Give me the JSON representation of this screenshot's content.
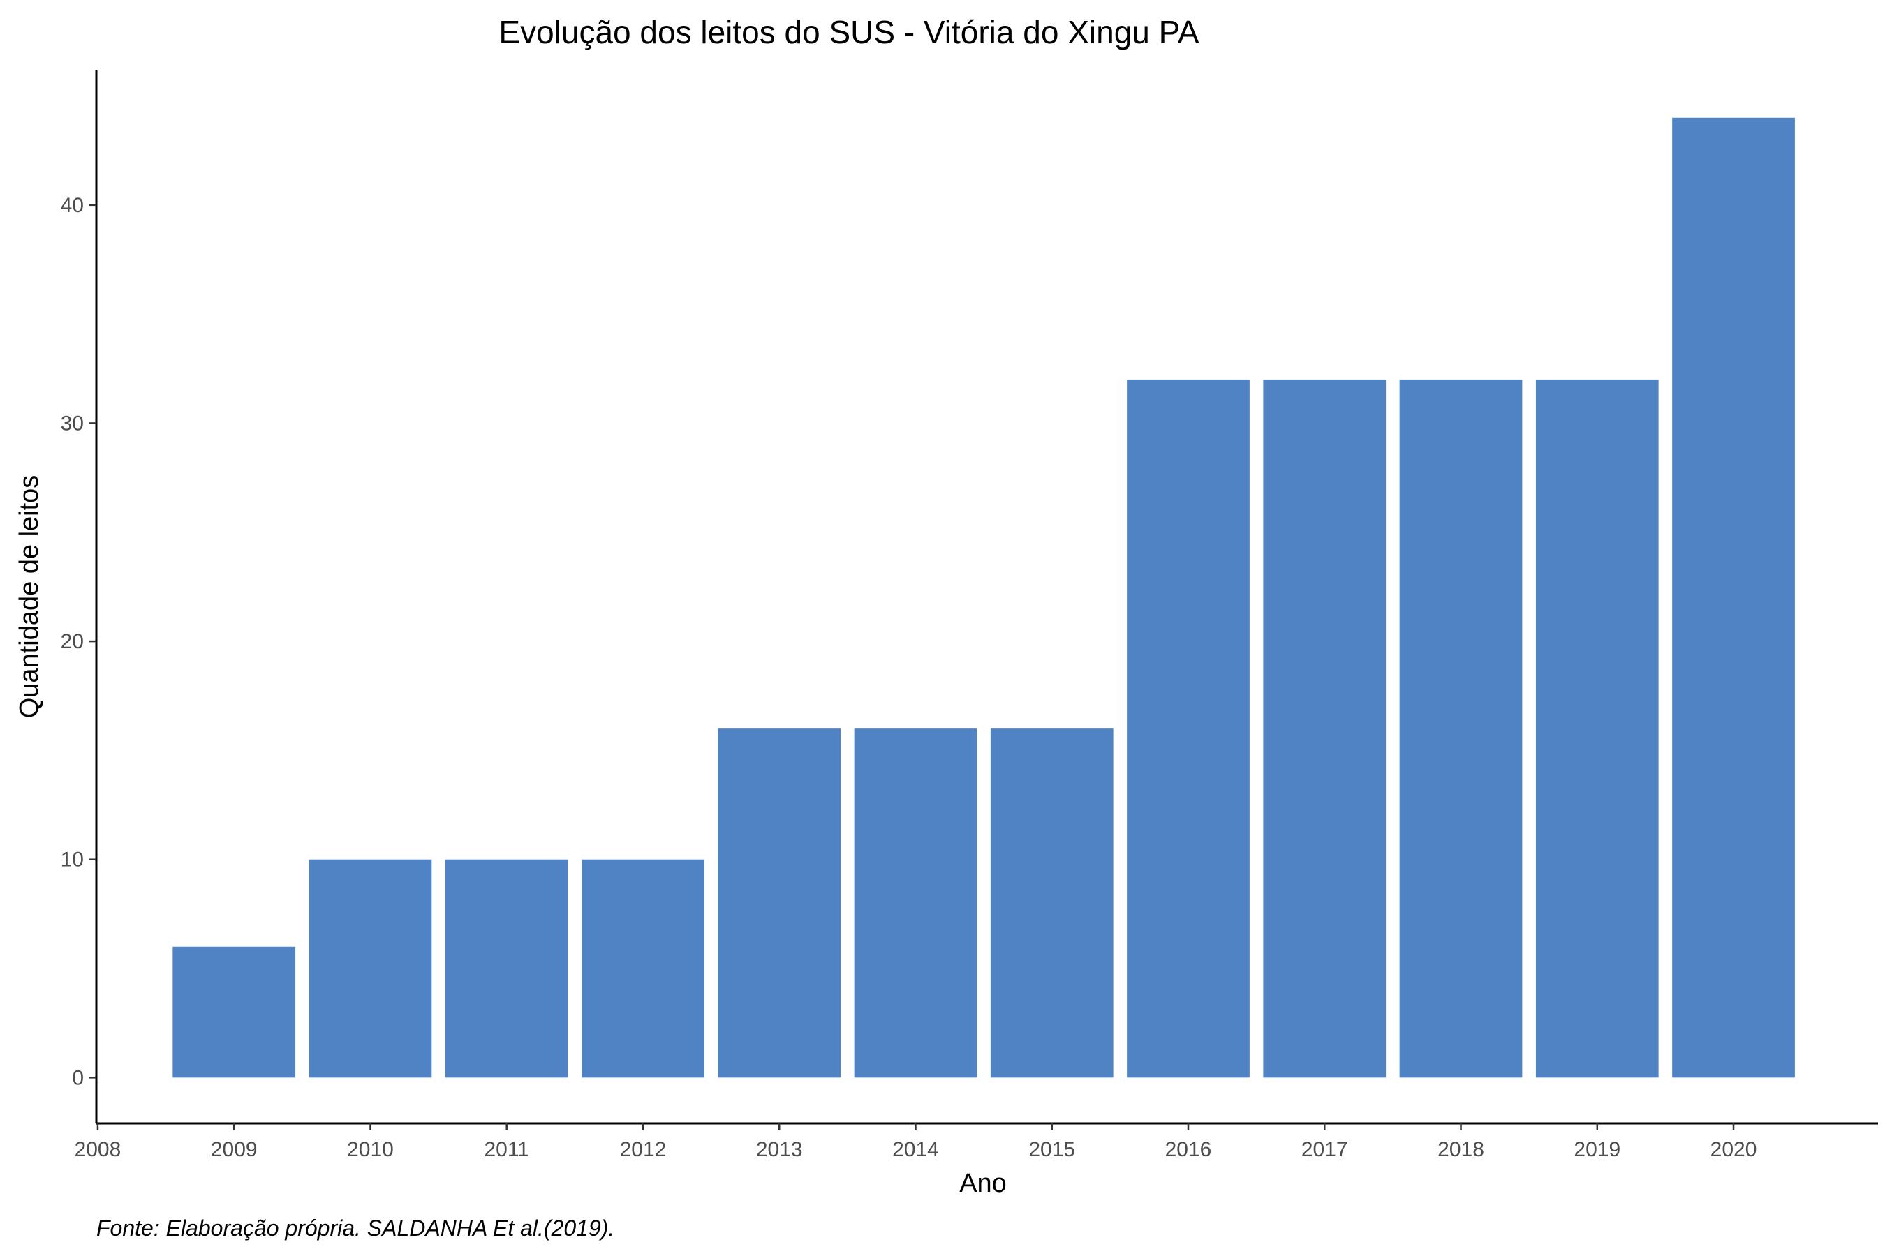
{
  "chart_data": {
    "type": "bar",
    "title": "Evolução dos leitos do SUS -  Vitória do Xingu PA",
    "xlabel": "Ano",
    "ylabel": "Quantidade de leitos",
    "caption": "Fonte: Elaboração própria. SALDANHA Et al.(2019).",
    "x": [
      2009,
      2010,
      2011,
      2012,
      2013,
      2014,
      2015,
      2016,
      2017,
      2018,
      2019,
      2020
    ],
    "values": [
      6,
      10,
      10,
      10,
      16,
      16,
      16,
      32,
      32,
      32,
      32,
      44
    ],
    "xticks": [
      2008,
      2009,
      2010,
      2011,
      2012,
      2013,
      2014,
      2015,
      2016,
      2017,
      2018,
      2019,
      2020
    ],
    "yticks": [
      0,
      10,
      20,
      30,
      40
    ],
    "xlim": [
      2007.99,
      2021.06
    ],
    "ylim": [
      -2.1,
      46.2
    ],
    "bar_color": "#4f83c4",
    "grid": false,
    "legend": "none"
  }
}
